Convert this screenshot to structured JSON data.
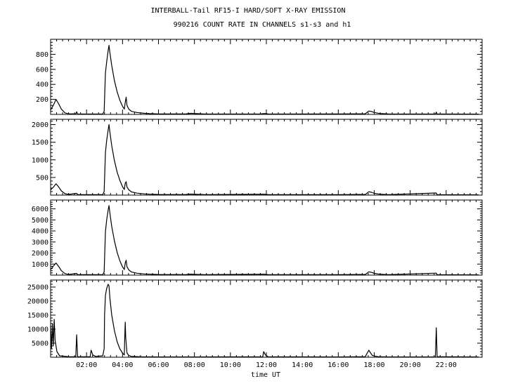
{
  "title_line1": "INTERBALL-Tail RF15-I HARD/SOFT X-RAY EMISSION",
  "title_line2": "990216  COUNT RATE IN CHANNELS s1-s3 and h1",
  "xlabel": "time UT",
  "x_tick_labels": [
    "02:00",
    "04:00",
    "06:00",
    "08:00",
    "10:00",
    "12:00",
    "14:00",
    "16:00",
    "18:00",
    "20:00",
    "22:00"
  ],
  "chart_data": [
    {
      "type": "line",
      "series": [
        {
          "values": [
            [
              0.0,
              60
            ],
            [
              0.15,
              120
            ],
            [
              0.3,
              200
            ],
            [
              0.45,
              140
            ],
            [
              0.6,
              70
            ],
            [
              0.8,
              20
            ],
            [
              1.0,
              8
            ],
            [
              1.4,
              6
            ],
            [
              1.45,
              35
            ],
            [
              1.5,
              6
            ],
            [
              2.5,
              5
            ],
            [
              2.9,
              6
            ],
            [
              2.98,
              40
            ],
            [
              3.05,
              550
            ],
            [
              3.12,
              700
            ],
            [
              3.2,
              850
            ],
            [
              3.25,
              920
            ],
            [
              3.3,
              820
            ],
            [
              3.4,
              650
            ],
            [
              3.55,
              450
            ],
            [
              3.7,
              300
            ],
            [
              3.85,
              190
            ],
            [
              4.0,
              110
            ],
            [
              4.1,
              70
            ],
            [
              4.15,
              160
            ],
            [
              4.2,
              230
            ],
            [
              4.25,
              120
            ],
            [
              4.35,
              70
            ],
            [
              4.5,
              40
            ],
            [
              4.8,
              25
            ],
            [
              5.2,
              15
            ],
            [
              5.5,
              10
            ],
            [
              6.0,
              7
            ],
            [
              7.5,
              6
            ],
            [
              7.8,
              14
            ],
            [
              8.2,
              9
            ],
            [
              8.6,
              5
            ],
            [
              11.7,
              6
            ],
            [
              11.9,
              12
            ],
            [
              12.1,
              6
            ],
            [
              13.0,
              5
            ],
            [
              16.0,
              6
            ],
            [
              17.5,
              8
            ],
            [
              17.7,
              45
            ],
            [
              17.85,
              38
            ],
            [
              18.0,
              25
            ],
            [
              18.3,
              12
            ],
            [
              18.8,
              6
            ],
            [
              21.4,
              5
            ],
            [
              21.45,
              30
            ],
            [
              21.5,
              5
            ],
            [
              23.8,
              4
            ]
          ]
        }
      ],
      "ylim": [
        0,
        1000
      ],
      "y_ticks": [
        200,
        400,
        600,
        800
      ]
    },
    {
      "type": "line",
      "series": [
        {
          "values": [
            [
              0.0,
              150
            ],
            [
              0.15,
              220
            ],
            [
              0.3,
              320
            ],
            [
              0.45,
              230
            ],
            [
              0.6,
              120
            ],
            [
              0.8,
              40
            ],
            [
              1.0,
              20
            ],
            [
              1.45,
              50
            ],
            [
              1.5,
              15
            ],
            [
              2.5,
              12
            ],
            [
              2.9,
              15
            ],
            [
              2.98,
              100
            ],
            [
              3.05,
              1200
            ],
            [
              3.12,
              1550
            ],
            [
              3.2,
              1850
            ],
            [
              3.25,
              2000
            ],
            [
              3.3,
              1780
            ],
            [
              3.4,
              1400
            ],
            [
              3.55,
              980
            ],
            [
              3.7,
              650
            ],
            [
              3.85,
              420
            ],
            [
              4.0,
              240
            ],
            [
              4.1,
              160
            ],
            [
              4.15,
              340
            ],
            [
              4.2,
              380
            ],
            [
              4.25,
              230
            ],
            [
              4.35,
              150
            ],
            [
              4.5,
              90
            ],
            [
              4.8,
              55
            ],
            [
              5.2,
              35
            ],
            [
              5.5,
              25
            ],
            [
              6.0,
              18
            ],
            [
              7.5,
              15
            ],
            [
              7.8,
              30
            ],
            [
              8.2,
              20
            ],
            [
              8.6,
              12
            ],
            [
              11.9,
              25
            ],
            [
              12.1,
              12
            ],
            [
              16.0,
              14
            ],
            [
              17.5,
              18
            ],
            [
              17.7,
              95
            ],
            [
              17.85,
              80
            ],
            [
              18.0,
              50
            ],
            [
              18.3,
              25
            ],
            [
              18.8,
              14
            ],
            [
              21.45,
              60
            ],
            [
              21.5,
              10
            ],
            [
              23.8,
              8
            ]
          ]
        }
      ],
      "ylim": [
        0,
        2150
      ],
      "y_ticks": [
        500,
        1000,
        1500,
        2000
      ]
    },
    {
      "type": "line",
      "series": [
        {
          "values": [
            [
              0.0,
              500
            ],
            [
              0.15,
              800
            ],
            [
              0.3,
              1100
            ],
            [
              0.45,
              780
            ],
            [
              0.6,
              400
            ],
            [
              0.8,
              140
            ],
            [
              1.0,
              60
            ],
            [
              1.45,
              150
            ],
            [
              1.5,
              40
            ],
            [
              2.5,
              35
            ],
            [
              2.9,
              45
            ],
            [
              2.98,
              300
            ],
            [
              3.05,
              3900
            ],
            [
              3.12,
              5000
            ],
            [
              3.2,
              5900
            ],
            [
              3.25,
              6300
            ],
            [
              3.3,
              5600
            ],
            [
              3.4,
              4400
            ],
            [
              3.55,
              3100
            ],
            [
              3.7,
              2050
            ],
            [
              3.85,
              1300
            ],
            [
              4.0,
              750
            ],
            [
              4.1,
              500
            ],
            [
              4.15,
              1100
            ],
            [
              4.2,
              1350
            ],
            [
              4.25,
              750
            ],
            [
              4.35,
              470
            ],
            [
              4.5,
              280
            ],
            [
              4.8,
              170
            ],
            [
              5.2,
              110
            ],
            [
              5.5,
              80
            ],
            [
              6.0,
              55
            ],
            [
              7.5,
              45
            ],
            [
              7.8,
              90
            ],
            [
              8.2,
              60
            ],
            [
              8.6,
              35
            ],
            [
              11.9,
              80
            ],
            [
              12.1,
              40
            ],
            [
              16.0,
              45
            ],
            [
              17.5,
              55
            ],
            [
              17.7,
              300
            ],
            [
              17.85,
              250
            ],
            [
              18.0,
              160
            ],
            [
              18.3,
              80
            ],
            [
              18.8,
              45
            ],
            [
              21.45,
              180
            ],
            [
              21.5,
              30
            ],
            [
              23.8,
              25
            ]
          ]
        }
      ],
      "ylim": [
        0,
        6800
      ],
      "y_ticks": [
        1000,
        2000,
        3000,
        4000,
        5000,
        6000
      ]
    },
    {
      "type": "line",
      "series": [
        {
          "values": [
            [
              0.0,
              11000
            ],
            [
              0.05,
              3000
            ],
            [
              0.1,
              12000
            ],
            [
              0.15,
              4000
            ],
            [
              0.2,
              13500
            ],
            [
              0.25,
              6000
            ],
            [
              0.35,
              2000
            ],
            [
              0.5,
              500
            ],
            [
              1.0,
              200
            ],
            [
              1.4,
              150
            ],
            [
              1.45,
              8000
            ],
            [
              1.5,
              200
            ],
            [
              2.2,
              150
            ],
            [
              2.25,
              2500
            ],
            [
              2.35,
              800
            ],
            [
              2.5,
              300
            ],
            [
              2.9,
              500
            ],
            [
              2.98,
              3000
            ],
            [
              3.0,
              15000
            ],
            [
              3.05,
              22000
            ],
            [
              3.12,
              24500
            ],
            [
              3.2,
              26000
            ],
            [
              3.25,
              25500
            ],
            [
              3.3,
              21000
            ],
            [
              3.4,
              15000
            ],
            [
              3.55,
              9500
            ],
            [
              3.7,
              5500
            ],
            [
              3.85,
              3000
            ],
            [
              4.0,
              1500
            ],
            [
              4.1,
              800
            ],
            [
              4.12,
              6000
            ],
            [
              4.15,
              12500
            ],
            [
              4.18,
              7000
            ],
            [
              4.25,
              1500
            ],
            [
              4.35,
              600
            ],
            [
              4.5,
              300
            ],
            [
              5.0,
              150
            ],
            [
              6.0,
              100
            ],
            [
              8.0,
              100
            ],
            [
              11.8,
              150
            ],
            [
              11.85,
              2000
            ],
            [
              11.95,
              800
            ],
            [
              12.1,
              150
            ],
            [
              16.0,
              100
            ],
            [
              17.5,
              200
            ],
            [
              17.7,
              2500
            ],
            [
              17.8,
              1500
            ],
            [
              17.9,
              600
            ],
            [
              18.2,
              200
            ],
            [
              18.8,
              100
            ],
            [
              21.4,
              100
            ],
            [
              21.45,
              10500
            ],
            [
              21.5,
              200
            ],
            [
              23.8,
              100
            ]
          ]
        }
      ],
      "ylim": [
        0,
        27500
      ],
      "y_ticks": [
        5000,
        10000,
        15000,
        20000,
        25000
      ]
    }
  ]
}
